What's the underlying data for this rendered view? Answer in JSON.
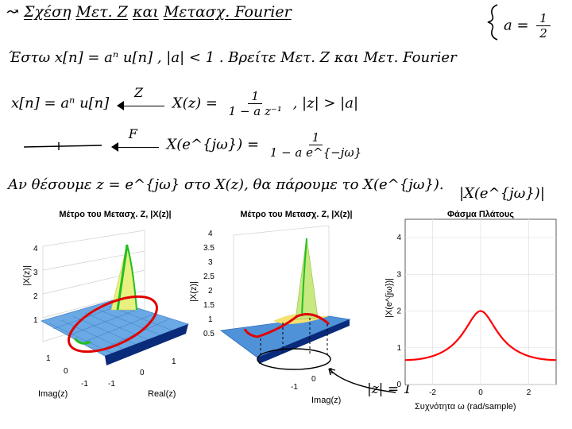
{
  "notes": {
    "title_prefix": "↝",
    "title_a": "Σχέση",
    "title_b": "Μετ. Ζ",
    "title_c": "και",
    "title_d": "Μετασχ. Fourier",
    "side_a": "a =",
    "side_num": "1",
    "side_den": "2",
    "line2": "Έστω  x[n] = aⁿ u[n] , |a| < 1 .  Βρείτε  Μετ. Ζ  και  Μετ. Fourier",
    "rowz_left": "x[n] = aⁿ u[n]",
    "rowz_arrow": "Z",
    "rowz_mid": "X(z) =",
    "rowz_num": "1",
    "rowz_den": "1 − a z⁻¹",
    "rowz_roc": ", |z| > |a|",
    "rowf_arrow": "F",
    "rowf_mid": "X(e^{jω}) =",
    "rowf_num": "1",
    "rowf_den": "1 − a e^{−jω}",
    "line4": "Αν  θέσουμε  z = e^{jω}  στο  X(z),  θα  πάρουμε  το  X(e^{jω}).",
    "abs_label": "|X(e^{jω})|",
    "circle_label": "|z| = 1"
  },
  "panels": [
    {
      "title": "Μέτρο του Μετασχ. Z, |X(z)|",
      "zlabel": "|X(z)|",
      "xlabel": "Real(z)",
      "ylabel": "Imag(z)",
      "zticks": [
        "1",
        "2",
        "3",
        "4"
      ],
      "yticks": [
        "1",
        "0",
        "-1"
      ],
      "xticks": [
        "-1",
        "0",
        "1"
      ]
    },
    {
      "title": "Μέτρο του Μετασχ. Z, |X(z)|",
      "zlabel": "|X(z)|",
      "xlabel": "Imag(z)",
      "zticks": [
        "0.5",
        "1",
        "1.5",
        "2",
        "2.5",
        "3",
        "3.5",
        "4"
      ],
      "xticks": [
        "-1",
        "0",
        "1"
      ]
    }
  ],
  "chart_data": {
    "type": "line",
    "title": "Φάσμα Πλάτους",
    "xlabel": "Συχνότητα ω (rad/sample)",
    "ylabel": "|X(e^{jω})|",
    "xlim": [
      -3.14159,
      3.14159
    ],
    "ylim": [
      0,
      4.5
    ],
    "xticks": [
      -2,
      0,
      2
    ],
    "yticks": [
      0,
      1,
      2,
      3,
      4
    ],
    "grid": true,
    "series": [
      {
        "a": 0.5,
        "x": [
          -3.142,
          -2.827,
          -2.513,
          -2.199,
          -1.885,
          -1.571,
          -1.257,
          -0.942,
          -0.628,
          -0.314,
          0.0,
          0.314,
          0.628,
          0.942,
          1.257,
          1.571,
          1.885,
          2.199,
          2.513,
          2.827,
          3.142
        ],
        "values": [
          0.667,
          0.673,
          0.69,
          0.722,
          0.772,
          0.894,
          0.977,
          1.134,
          1.391,
          1.763,
          2.0,
          1.763,
          1.391,
          1.134,
          0.977,
          0.894,
          0.772,
          0.722,
          0.69,
          0.673,
          0.667
        ]
      }
    ],
    "colors": {
      "curve": "#ff0000",
      "grid": "#e4e4e4"
    }
  }
}
